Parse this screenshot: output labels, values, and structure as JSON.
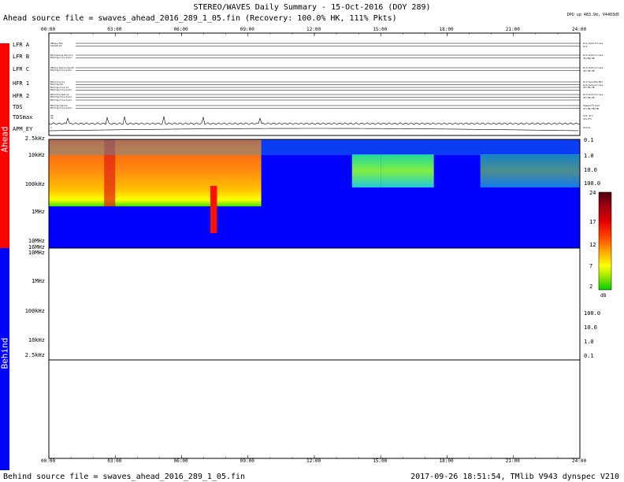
{
  "header": {
    "title": "STEREO/WAVES Daily Summary - 15-Oct-2016 (DOY 289)",
    "ahead_source": "Ahead source file = swaves_ahead_2016_289_1_05.fin (Recovery: 100.0% HK, 111% Pkts)",
    "cpu_info": "DPU up 483.9d, V4403d5"
  },
  "footer": {
    "behind_source": "Behind source file = swaves_ahead_2016_289_1_05.fin",
    "stamp": "2017-09-26 18:51:54, TMlib V943 dynspec V210"
  },
  "sidebar": {
    "ahead_label": "Ahead",
    "behind_label": "Behind",
    "ahead_color": "#ff0000",
    "behind_color": "#0000ff"
  },
  "time_axis": {
    "labels": [
      "00:00",
      "03:00",
      "06:00",
      "09:00",
      "12:00",
      "15:00",
      "18:00",
      "21:00",
      "24:00"
    ],
    "hours": [
      0,
      3,
      6,
      9,
      12,
      15,
      18,
      21,
      24
    ]
  },
  "hk_rows": [
    {
      "label": "LFR A",
      "left": [
        "VBias/Vbr",
        "SpinDist"
      ],
      "right": [
        "bit/Auto/Cross",
        "0/3"
      ]
    },
    {
      "label": "LFR B",
      "left": [
        "BC1/Gains/Do/Cls",
        "BC2/Sp/Cls/LoCo"
      ],
      "right": [
        "bit/Auto/Cross",
        "3F/3B/3B"
      ]
    },
    {
      "label": "LFR C",
      "left": [
        "VBias/Gains/Sp/Dc",
        "BC2/Sp/Cls/LoCo"
      ],
      "right": [
        "bit/Auto/Cross",
        "3F/7B/7B"
      ]
    },
    {
      "label": "HFR 1",
      "left": [
        "BC1/Cls/Lo",
        "BC2/Sp/Do",
        "BC3/Sp/Cls/Co",
        "BC4/Sp/Cls/LoCo"
      ],
      "right": [
        "bit/Sys/HC/Kbr",
        "bit/Auto/Cross",
        "3F/7B/7B"
      ]
    },
    {
      "label": "HFR 2",
      "left": [
        "BC1/Cls/Gains",
        "BC2/Sp/Cls/LoCo",
        "BC3/Sp/Cls/LoCo"
      ],
      "right": [
        "bit/Auto/Cross",
        "3F/7B/7B"
      ]
    },
    {
      "label": "TDS",
      "left": [
        "BC2/Sp/Gains",
        "BC3/Sp/Cls/LoCo"
      ],
      "right": [
        "Speed/Filter",
        "1T/TB/TB/TB"
      ]
    },
    {
      "label": "TDSmax",
      "left": [
        "65",
        "32"
      ],
      "right": [
        "dn1 dfn",
        "dfn/Fn"
      ]
    },
    {
      "label": "APM_EY",
      "left": [
        "1"
      ],
      "right": [
        "Volts"
      ]
    }
  ],
  "freq_axis": {
    "ahead": [
      "2.5kHz",
      "10kHz",
      "100kHz",
      "1MHz",
      "10MHz",
      "16MHz"
    ],
    "behind": [
      "10MHz",
      "1MHz",
      "100kHz",
      "10kHz",
      "2.5kHz"
    ]
  },
  "right_scale": {
    "ahead": [
      "0.1",
      "1.0",
      "10.0",
      "100.0"
    ],
    "behind": [
      "100.0",
      "10.0",
      "1.0",
      "0.1"
    ]
  },
  "colorbar": {
    "ticks": [
      "24",
      "17",
      "12",
      "7",
      "2"
    ],
    "unit": "dB",
    "range_db": [
      2,
      24
    ],
    "colors": [
      "#00cc00",
      "#88ee00",
      "#ffff00",
      "#ffa000",
      "#ff4000",
      "#e00000",
      "#a00010",
      "#500010"
    ]
  },
  "chart_data": {
    "type": "heatmap",
    "title": "STEREO/WAVES Daily Summary - 15-Oct-2016 (DOY 289)",
    "xlabel": "",
    "ylabel": "",
    "xlim_hours": [
      0,
      24
    ],
    "colorbar_db": [
      2,
      24
    ],
    "panels": [
      {
        "name": "Ahead",
        "frequency_range": [
          "2.5kHz",
          "16MHz"
        ],
        "background": "#0000ff",
        "features": [
          {
            "kind": "continuum",
            "t_start_h": 0.0,
            "t_end_h": 9.6,
            "f_top": "2.5kHz",
            "f_bottom": "1MHz",
            "level_db": 12
          },
          {
            "kind": "enhancement",
            "t_start_h": 2.5,
            "t_end_h": 3.0,
            "level_db": 17
          },
          {
            "kind": "radio_burst",
            "t_start_h": 7.3,
            "t_end_h": 7.6,
            "f_top": "100kHz",
            "f_bottom": "3MHz",
            "level_db": 22
          },
          {
            "kind": "patch",
            "t_start_h": 13.7,
            "t_end_h": 15.0,
            "f_top": "10kHz",
            "f_bottom": "100kHz",
            "level_db": 6
          },
          {
            "kind": "patch",
            "t_start_h": 15.0,
            "t_end_h": 17.4,
            "f_top": "10kHz",
            "f_bottom": "100kHz",
            "level_db": 7
          },
          {
            "kind": "patch",
            "t_start_h": 19.5,
            "t_end_h": 24.0,
            "f_top": "10kHz",
            "f_bottom": "100kHz",
            "level_db": 4
          }
        ]
      },
      {
        "name": "Behind",
        "frequency_range": [
          "10MHz",
          "2.5kHz"
        ],
        "data": "none"
      }
    ]
  }
}
